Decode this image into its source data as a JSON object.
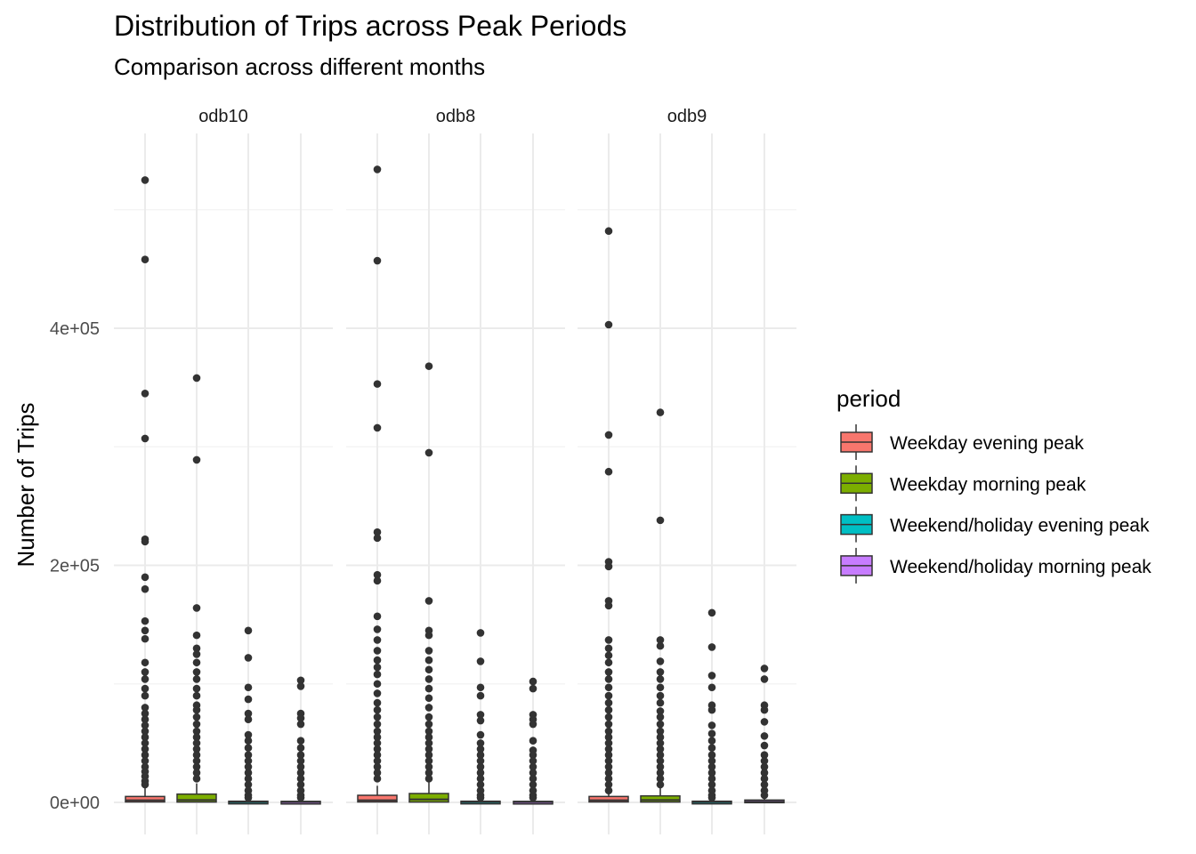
{
  "chart_data": {
    "type": "box",
    "title": "Distribution of Trips across Peak Periods",
    "subtitle": "Comparison across different months",
    "xlabel": "",
    "ylabel": "Number of Trips",
    "y_ticks": [
      "0e+00",
      "2e+05",
      "4e+05"
    ],
    "y_tick_values": [
      0,
      200000,
      400000
    ],
    "ylim": [
      -25000,
      565000
    ],
    "grid": true,
    "legend": {
      "title": "period",
      "position": "right",
      "entries": [
        {
          "name": "Weekday evening peak",
          "color": "#F8766D"
        },
        {
          "name": "Weekday morning peak",
          "color": "#7CAE00"
        },
        {
          "name": "Weekend/holiday evening peak",
          "color": "#00BFC4"
        },
        {
          "name": "Weekend/holiday morning peak",
          "color": "#C77CFF"
        }
      ]
    },
    "facets": [
      {
        "label": "odb10",
        "boxes": [
          {
            "period": "Weekday evening peak",
            "q1": 400,
            "median": 1800,
            "q3": 5000,
            "whisker_high": 12000,
            "outliers": [
              525000,
              458000,
              345000,
              307000,
              222000,
              220000,
              190000,
              180000,
              153000,
              145000,
              138000,
              118000,
              110000,
              104000,
              96000,
              90000,
              80000,
              75000,
              70000,
              65000,
              60000,
              55000,
              50000,
              45000,
              40000,
              35000,
              30000,
              26000,
              22000,
              18000,
              15000
            ]
          },
          {
            "period": "Weekday morning peak",
            "q1": 300,
            "median": 2000,
            "q3": 7000,
            "whisker_high": 16000,
            "outliers": [
              358000,
              289000,
              164000,
              141000,
              130000,
              125000,
              118000,
              110000,
              104000,
              96000,
              90000,
              82000,
              78000,
              72000,
              66000,
              60000,
              55000,
              50000,
              45000,
              40000,
              35000,
              30000,
              25000,
              20000
            ]
          },
          {
            "period": "Weekend/holiday evening peak",
            "q1": 50,
            "median": 300,
            "q3": 1000,
            "whisker_high": 2500,
            "outliers": [
              145000,
              122000,
              97000,
              87000,
              75000,
              70000,
              57000,
              52000,
              46000,
              40000,
              35000,
              30000,
              25000,
              20000,
              15000,
              10000,
              6000,
              4000
            ]
          },
          {
            "period": "Weekend/holiday morning peak",
            "q1": 50,
            "median": 250,
            "q3": 900,
            "whisker_high": 2200,
            "outliers": [
              103000,
              98000,
              75000,
              71000,
              66000,
              52000,
              46000,
              40000,
              35000,
              30000,
              25000,
              20000,
              15000,
              10000,
              6000,
              4000
            ]
          }
        ]
      },
      {
        "label": "odb8",
        "boxes": [
          {
            "period": "Weekday evening peak",
            "q1": 400,
            "median": 1800,
            "q3": 6000,
            "whisker_high": 14000,
            "outliers": [
              534000,
              457000,
              353000,
              316000,
              228000,
              223000,
              192000,
              187000,
              157000,
              146000,
              137000,
              128000,
              120000,
              114000,
              108000,
              100000,
              92000,
              84000,
              78000,
              72000,
              66000,
              60000,
              55000,
              50000,
              45000,
              40000,
              35000,
              30000,
              25000,
              20000
            ]
          },
          {
            "period": "Weekday morning peak",
            "q1": 300,
            "median": 2500,
            "q3": 7500,
            "whisker_high": 17000,
            "outliers": [
              368000,
              295000,
              170000,
              145000,
              141000,
              128000,
              120000,
              112000,
              104000,
              96000,
              88000,
              80000,
              72000,
              66000,
              60000,
              55000,
              50000,
              45000,
              40000,
              35000,
              30000,
              25000,
              20000
            ]
          },
          {
            "period": "Weekend/holiday evening peak",
            "q1": 50,
            "median": 300,
            "q3": 1000,
            "whisker_high": 2500,
            "outliers": [
              143000,
              119000,
              97000,
              90000,
              74000,
              69000,
              57000,
              50000,
              45000,
              40000,
              35000,
              30000,
              25000,
              20000,
              15000,
              10000,
              6000,
              4000
            ]
          },
          {
            "period": "Weekend/holiday morning peak",
            "q1": 50,
            "median": 250,
            "q3": 900,
            "whisker_high": 2200,
            "outliers": [
              102000,
              96000,
              74000,
              70000,
              66000,
              52000,
              44000,
              40000,
              35000,
              30000,
              25000,
              20000,
              15000,
              10000,
              6000,
              4000
            ]
          }
        ]
      },
      {
        "label": "odb9",
        "boxes": [
          {
            "period": "Weekday evening peak",
            "q1": 400,
            "median": 1800,
            "q3": 5000,
            "whisker_high": 12000,
            "outliers": [
              482000,
              403000,
              310000,
              279000,
              203000,
              199000,
              170000,
              166000,
              137000,
              130000,
              124000,
              118000,
              110000,
              104000,
              97000,
              90000,
              84000,
              78000,
              72000,
              66000,
              60000,
              55000,
              50000,
              45000,
              40000,
              35000,
              30000,
              25000,
              20000,
              15000,
              10000
            ]
          },
          {
            "period": "Weekday morning peak",
            "q1": 300,
            "median": 2000,
            "q3": 5500,
            "whisker_high": 13000,
            "outliers": [
              329000,
              238000,
              137000,
              132000,
              119000,
              110000,
              104000,
              97000,
              90000,
              84000,
              77000,
              72000,
              66000,
              60000,
              55000,
              50000,
              45000,
              40000,
              35000,
              30000,
              25000,
              20000,
              15000
            ]
          },
          {
            "period": "Weekend/holiday evening peak",
            "q1": 50,
            "median": 300,
            "q3": 1000,
            "whisker_high": 2500,
            "outliers": [
              160000,
              131000,
              107000,
              97000,
              82000,
              78000,
              65000,
              58000,
              52000,
              46000,
              40000,
              35000,
              30000,
              25000,
              20000,
              15000,
              10000,
              6000,
              4000
            ]
          },
          {
            "period": "Weekend/holiday morning peak",
            "q1": 100,
            "median": 600,
            "q3": 2000,
            "whisker_high": 4500,
            "outliers": [
              113000,
              104000,
              82000,
              78000,
              68000,
              56000,
              48000,
              40000,
              35000,
              30000,
              25000,
              20000,
              15000,
              10000,
              6000
            ]
          }
        ]
      }
    ]
  }
}
